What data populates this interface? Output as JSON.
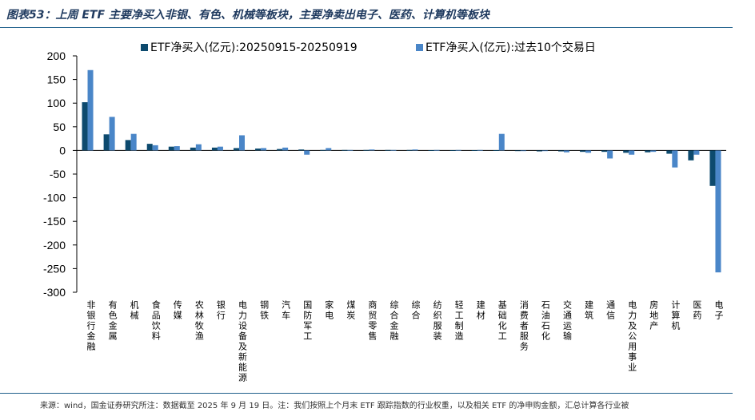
{
  "title": "图表53：上周 ETF 主要净买入非银、有色、机械等板块，主要净卖出电子、医药、计算机等板块",
  "footer": "来源：wind，国金证券研究所注：数据截至 2025 年 9 月 19 日。注：我们按照上个月末 ETF 跟踪指数的行业权重，以及相关 ETF 的净申购金额，汇总计算各行业被",
  "colors": {
    "series1": "#0d4a6e",
    "series2": "#4a86c8",
    "rule": "#1f5f8b",
    "title": "#1f3a5f"
  },
  "chart_data": {
    "type": "bar",
    "legend_position": "top",
    "grid": false,
    "ylim": [
      -300,
      200
    ],
    "yticks": [
      200,
      150,
      100,
      50,
      0,
      -50,
      -100,
      -150,
      -200,
      -250,
      -300
    ],
    "categories": [
      "非银行金融",
      "有色金属",
      "机械",
      "食品饮料",
      "传媒",
      "农林牧渔",
      "银行",
      "电力设备及新能源",
      "钢铁",
      "汽车",
      "国防军工",
      "家电",
      "煤炭",
      "商贸零售",
      "综合金融",
      "综合",
      "纺织服装",
      "轻工制造",
      "建材",
      "基础化工",
      "消费者服务",
      "石油石化",
      "交通运输",
      "建筑",
      "通信",
      "电力及公用事业",
      "房地产",
      "计算机",
      "医药",
      "电子"
    ],
    "series": [
      {
        "name": "ETF净买入(亿元):20250915-20250919",
        "values": [
          102,
          34,
          22,
          14,
          8,
          6,
          6,
          5,
          4,
          3,
          2,
          1,
          1,
          1,
          1,
          1,
          0.5,
          0.5,
          0.5,
          0.5,
          -1,
          -2,
          -2,
          -3,
          -3,
          -5,
          -4,
          -7,
          -21,
          -75
        ]
      },
      {
        "name": "ETF净买入(亿元):过去10个交易日",
        "values": [
          170,
          71,
          35,
          11,
          9,
          13,
          8,
          32,
          5,
          6,
          -9,
          5,
          1,
          2,
          1,
          2,
          1,
          1,
          1,
          35,
          -1,
          -1,
          -4,
          -5,
          -17,
          -9,
          -3,
          -36,
          -9,
          -258
        ]
      }
    ]
  }
}
